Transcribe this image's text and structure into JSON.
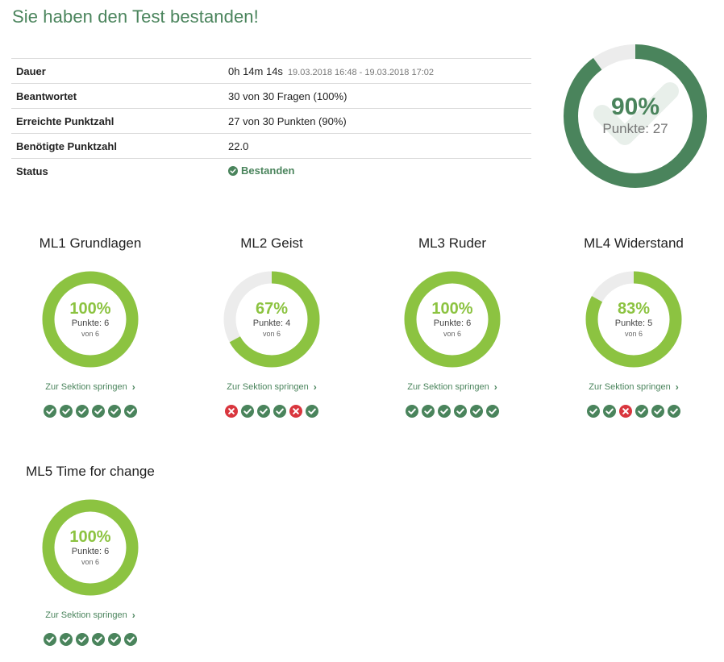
{
  "page": {
    "title": "Sie haben den Test bestanden!"
  },
  "summary": {
    "rows": [
      {
        "label": "Dauer",
        "value": "0h 14m 14s",
        "extra": "19.03.2018 16:48 - 19.03.2018 17:02"
      },
      {
        "label": "Beantwortet",
        "value": "30 von 30 Fragen (100%)"
      },
      {
        "label": "Erreichte Punktzahl",
        "value": "27 von 30 Punkten (90%)"
      },
      {
        "label": "Benötigte Punktzahl",
        "value": "22.0"
      },
      {
        "label": "Status",
        "value": "Bestanden",
        "icon": "check-circle-icon"
      }
    ]
  },
  "overall": {
    "percent_label": "90%",
    "points_label": "Punkte: 27",
    "fraction": 0.9,
    "color": "#4a845c"
  },
  "sections": [
    {
      "title": "ML1 Grundlagen",
      "percent_label": "100%",
      "points_label": "Punkte: 6",
      "of_label": "von 6",
      "fraction": 1.0,
      "link": "Zur Sektion springen",
      "results": [
        true,
        true,
        true,
        true,
        true,
        true
      ]
    },
    {
      "title": "ML2 Geist",
      "percent_label": "67%",
      "points_label": "Punkte: 4",
      "of_label": "von 6",
      "fraction": 0.67,
      "link": "Zur Sektion springen",
      "results": [
        false,
        true,
        true,
        true,
        false,
        true
      ]
    },
    {
      "title": "ML3 Ruder",
      "percent_label": "100%",
      "points_label": "Punkte: 6",
      "of_label": "von 6",
      "fraction": 1.0,
      "link": "Zur Sektion springen",
      "results": [
        true,
        true,
        true,
        true,
        true,
        true
      ]
    },
    {
      "title": "ML4 Widerstand",
      "percent_label": "83%",
      "points_label": "Punkte: 5",
      "of_label": "von 6",
      "fraction": 0.83,
      "link": "Zur Sektion springen",
      "results": [
        true,
        true,
        false,
        true,
        true,
        true
      ]
    },
    {
      "title": "ML5 Time for change",
      "percent_label": "100%",
      "points_label": "Punkte: 6",
      "of_label": "von 6",
      "fraction": 1.0,
      "link": "Zur Sektion springen",
      "results": [
        true,
        true,
        true,
        true,
        true,
        true
      ]
    }
  ],
  "colors": {
    "brand_green": "#4a845c",
    "section_green": "#8cc341",
    "track": "#ececec",
    "wrong_red": "#d9363e"
  }
}
